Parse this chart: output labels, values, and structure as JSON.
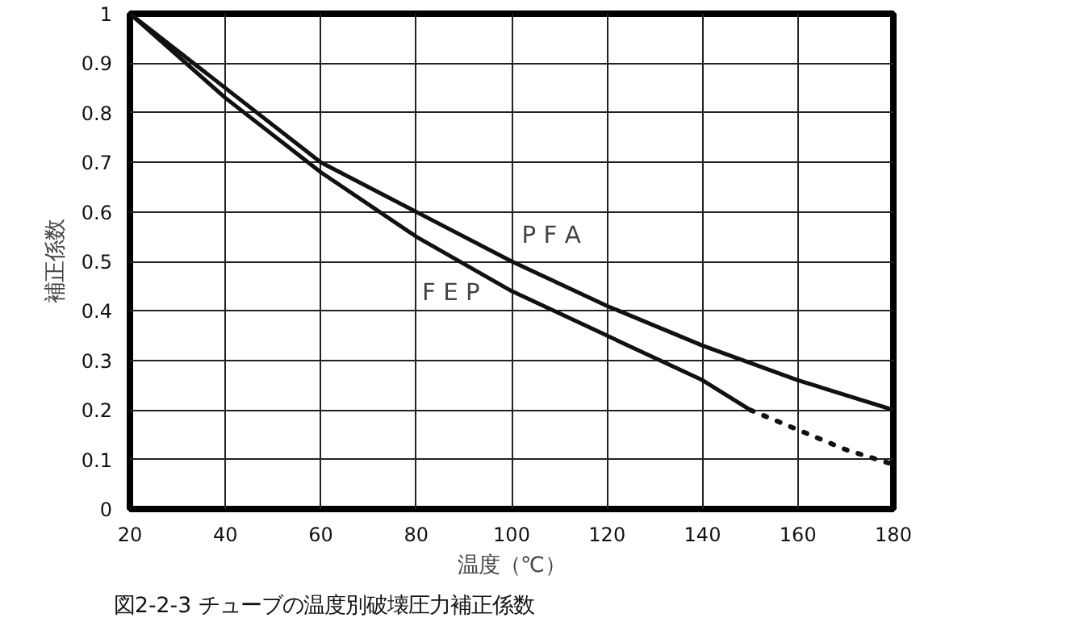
{
  "chart_data": {
    "type": "line",
    "xlabel": "温度（℃）",
    "ylabel": "補正係数",
    "xlim": [
      20,
      180
    ],
    "xticks": [
      20,
      40,
      60,
      80,
      100,
      120,
      140,
      160,
      180
    ],
    "ylim": [
      0,
      1
    ],
    "yticks": [
      0,
      {
        "value": 0.1,
        "label": "0.1"
      },
      {
        "value": 0.2,
        "label": "0.2"
      },
      {
        "value": 0.3,
        "label": "0.3"
      },
      {
        "value": 0.4,
        "label": "0.4"
      },
      {
        "value": 0.5,
        "label": "0.5"
      },
      {
        "value": 0.6,
        "label": "0.6"
      },
      {
        "value": 0.7,
        "label": "0.7"
      },
      {
        "value": 0.8,
        "label": "0.8"
      },
      {
        "value": 0.9,
        "label": "0.9"
      },
      1
    ],
    "grid": true,
    "marker": "none",
    "x": [
      20,
      40,
      60,
      80,
      100,
      120,
      140,
      160,
      180
    ],
    "series": [
      {
        "name": "P F A",
        "color": "#111111",
        "line_style": "solid",
        "values": [
          1,
          0.85,
          0.7,
          0.6,
          0.5,
          0.41,
          0.33,
          0.26,
          0.2
        ]
      },
      {
        "name": "F E P",
        "color": "#111111",
        "line_style": "solid",
        "x": [
          20,
          40,
          60,
          80,
          100,
          120,
          140,
          150
        ],
        "values": [
          1,
          0.83,
          0.68,
          0.55,
          0.44,
          0.35,
          0.26,
          0.2
        ]
      },
      {
        "color": "#111111",
        "line_style": "dotted",
        "x": [
          150,
          160,
          170,
          180
        ],
        "values": [
          0.2,
          0.16,
          0.12,
          0.09
        ]
      }
    ],
    "annotations": [
      "図2-2-3 チューブの温度別破壊圧力補正係数"
    ]
  }
}
